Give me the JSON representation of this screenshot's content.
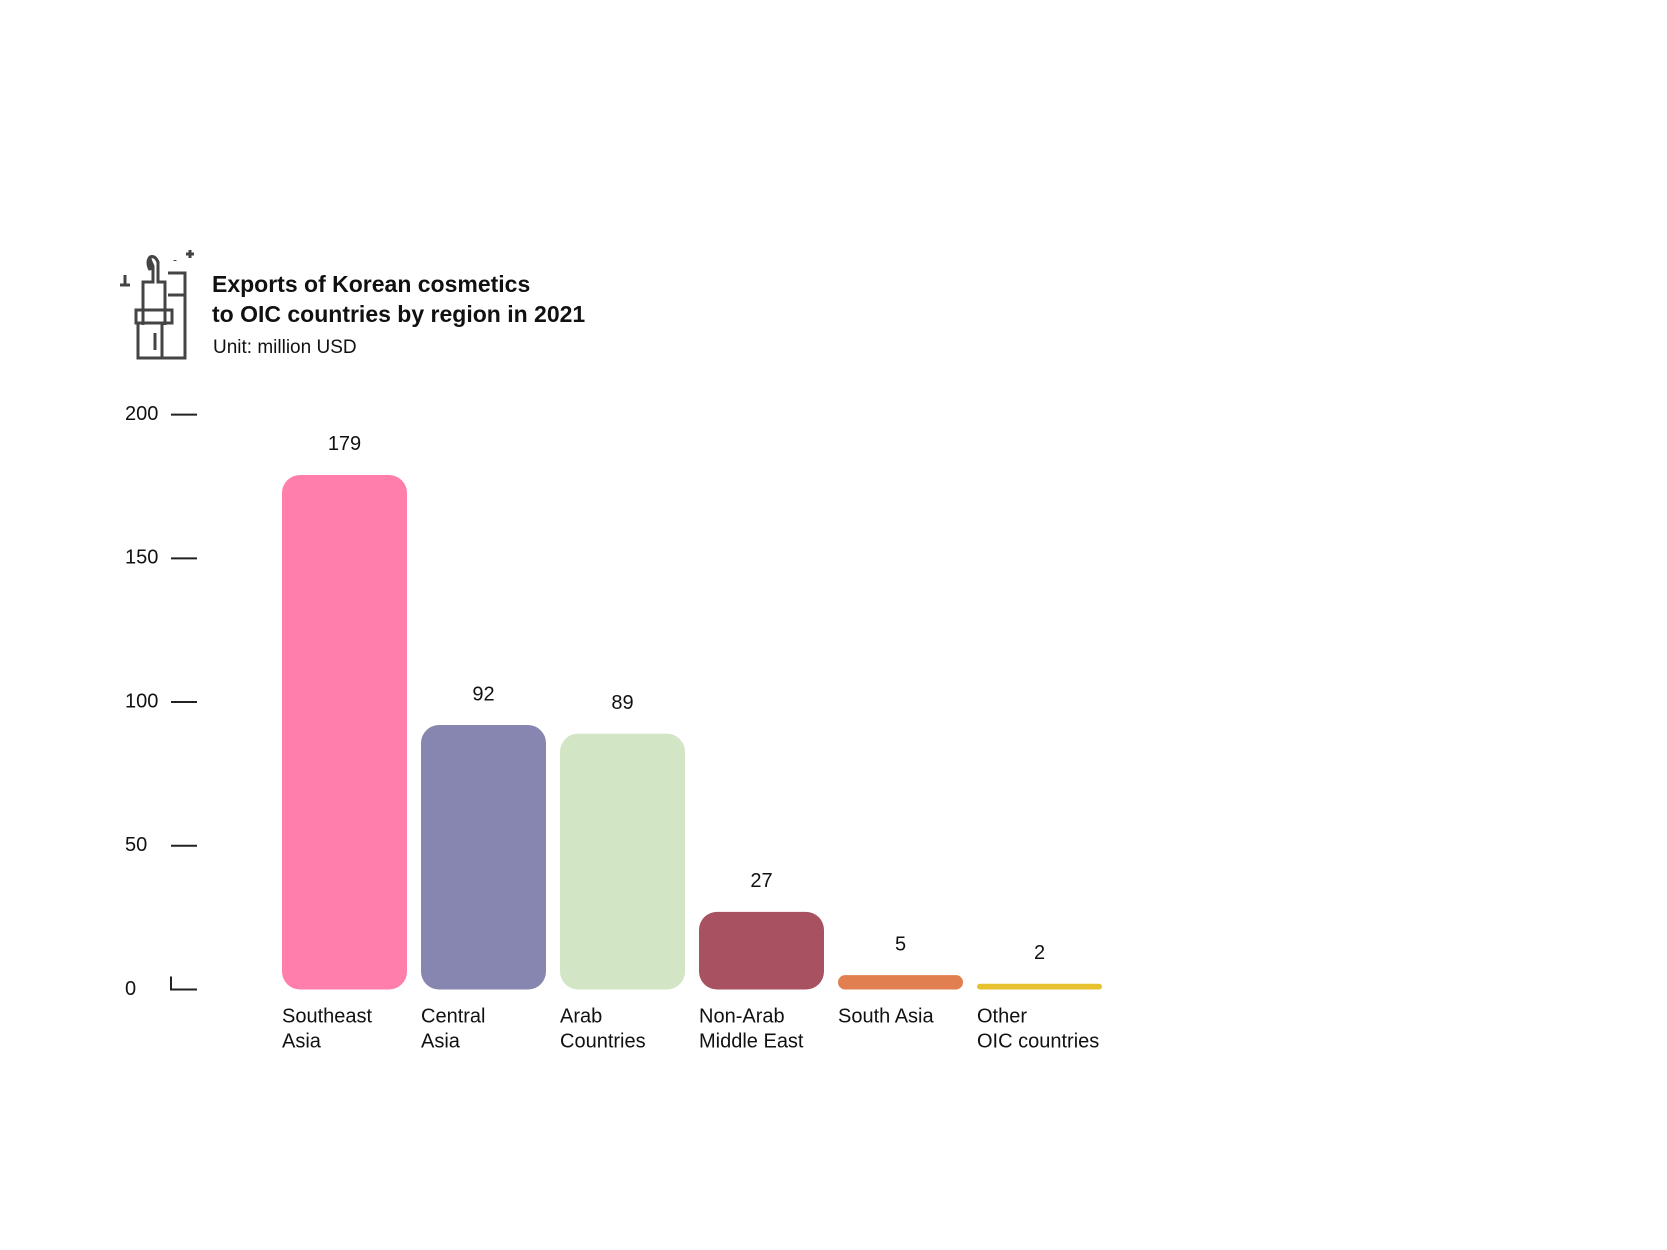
{
  "chart_data": {
    "type": "bar",
    "title": [
      "Exports of Korean cosmetics",
      "to OIC countries by region in 2021"
    ],
    "subtitle": "Unit: million USD",
    "categories": [
      [
        "Southeast",
        "Asia"
      ],
      [
        "Central",
        "Asia"
      ],
      [
        "Arab",
        "Countries"
      ],
      [
        "Non-Arab",
        "Middle East"
      ],
      [
        "South Asia"
      ],
      [
        "Other",
        "OIC countries"
      ]
    ],
    "values": [
      179,
      92,
      89,
      27,
      5,
      2
    ],
    "colors": [
      "#ff7eac",
      "#8686b0",
      "#d2e6c6",
      "#a85261",
      "#e27f50",
      "#e8c131"
    ],
    "ylim": [
      0,
      200
    ],
    "yticks": [
      0,
      50,
      100,
      150,
      200
    ]
  }
}
